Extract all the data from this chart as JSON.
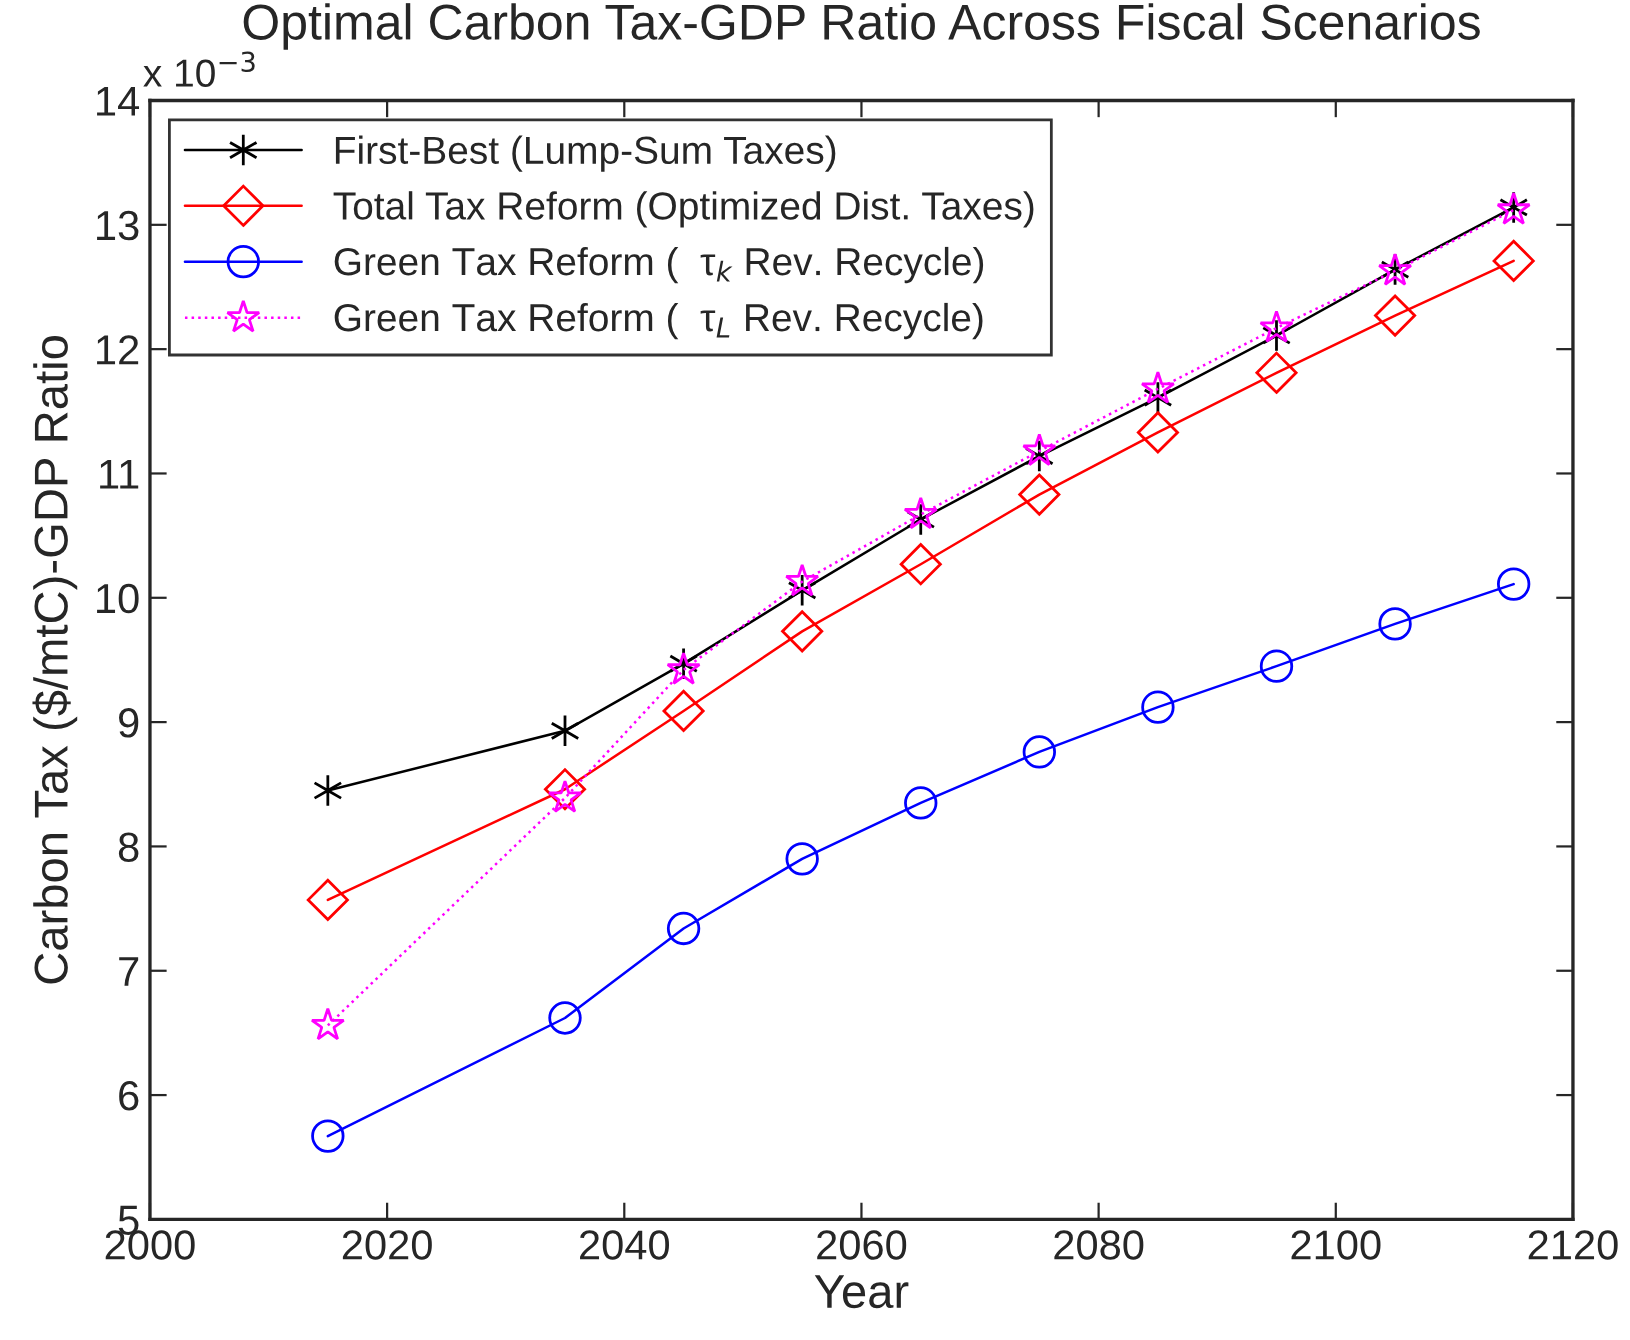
{
  "chart_data": {
    "type": "line",
    "title": "Optimal Carbon Tax-GDP Ratio Across Fiscal Scenarios",
    "xlabel": "Year",
    "ylabel": "Carbon Tax ($/mtC)-GDP Ratio",
    "annotations": [
      "x 10$^{−3}$"
    ],
    "x": [
      2015,
      2035,
      2045,
      2055,
      2065,
      2075,
      2085,
      2095,
      2105,
      2115
    ],
    "series": [
      {
        "name": "First-Best (Lump-Sum Taxes)",
        "color": "#000000",
        "marker": "cross",
        "line_style": "solid",
        "values": [
          8.45,
          8.93,
          9.47,
          10.06,
          10.63,
          11.14,
          11.61,
          12.11,
          12.64,
          13.14
        ]
      },
      {
        "name": "Total Tax Reform (Optimized Dist. Taxes)",
        "color": "#ff0000",
        "marker": "diamond",
        "line_style": "solid",
        "values": [
          7.57,
          8.46,
          9.09,
          9.73,
          10.27,
          10.83,
          11.33,
          11.81,
          12.27,
          12.71
        ]
      },
      {
        "name": "Green Tax Reform (  τ$_{k}$ Rev. Recycle)",
        "color": "#0000ff",
        "marker": "circle",
        "line_style": "solid",
        "values": [
          5.67,
          6.62,
          7.34,
          7.9,
          8.35,
          8.76,
          9.12,
          9.45,
          9.79,
          10.11
        ]
      },
      {
        "name": "Green Tax Reform (  τ$_{L}$ Rev. Recycle)",
        "color": "#ff00ff",
        "marker": "star",
        "line_style": "dotted",
        "values": [
          6.56,
          8.39,
          9.42,
          10.13,
          10.67,
          11.18,
          11.68,
          12.17,
          12.63,
          13.12
        ]
      }
    ],
    "xlim": [
      2000,
      2120
    ],
    "xticks": [
      2000,
      2020,
      2040,
      2060,
      2080,
      2100,
      2120
    ],
    "ylim": [
      5,
      14
    ],
    "yticks": [
      5,
      6,
      7,
      8,
      9,
      10,
      11,
      12,
      13,
      14
    ],
    "grid": false,
    "legend": "top left"
  }
}
